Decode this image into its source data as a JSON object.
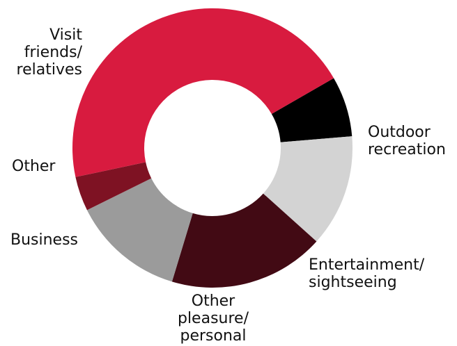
{
  "chart_data": {
    "type": "pie",
    "style": "donut",
    "legend": "none",
    "slices": [
      {
        "label_lines": [
          "Outdoor",
          "recreation"
        ],
        "value": 7,
        "color": "#000000"
      },
      {
        "label_lines": [
          "Entertainment/",
          "sightseeing"
        ],
        "value": 13,
        "color": "#d3d3d3"
      },
      {
        "label_lines": [
          "Other",
          "pleasure/",
          "personal"
        ],
        "value": 18,
        "color": "#420a14"
      },
      {
        "label_lines": [
          "Business"
        ],
        "value": 13,
        "color": "#9b9b9b"
      },
      {
        "label_lines": [
          "Other"
        ],
        "value": 4,
        "color": "#7e1223"
      },
      {
        "label_lines": [
          "Visit",
          "friends/",
          "relatives"
        ],
        "value": 45,
        "color": "#d81b3f"
      }
    ]
  }
}
